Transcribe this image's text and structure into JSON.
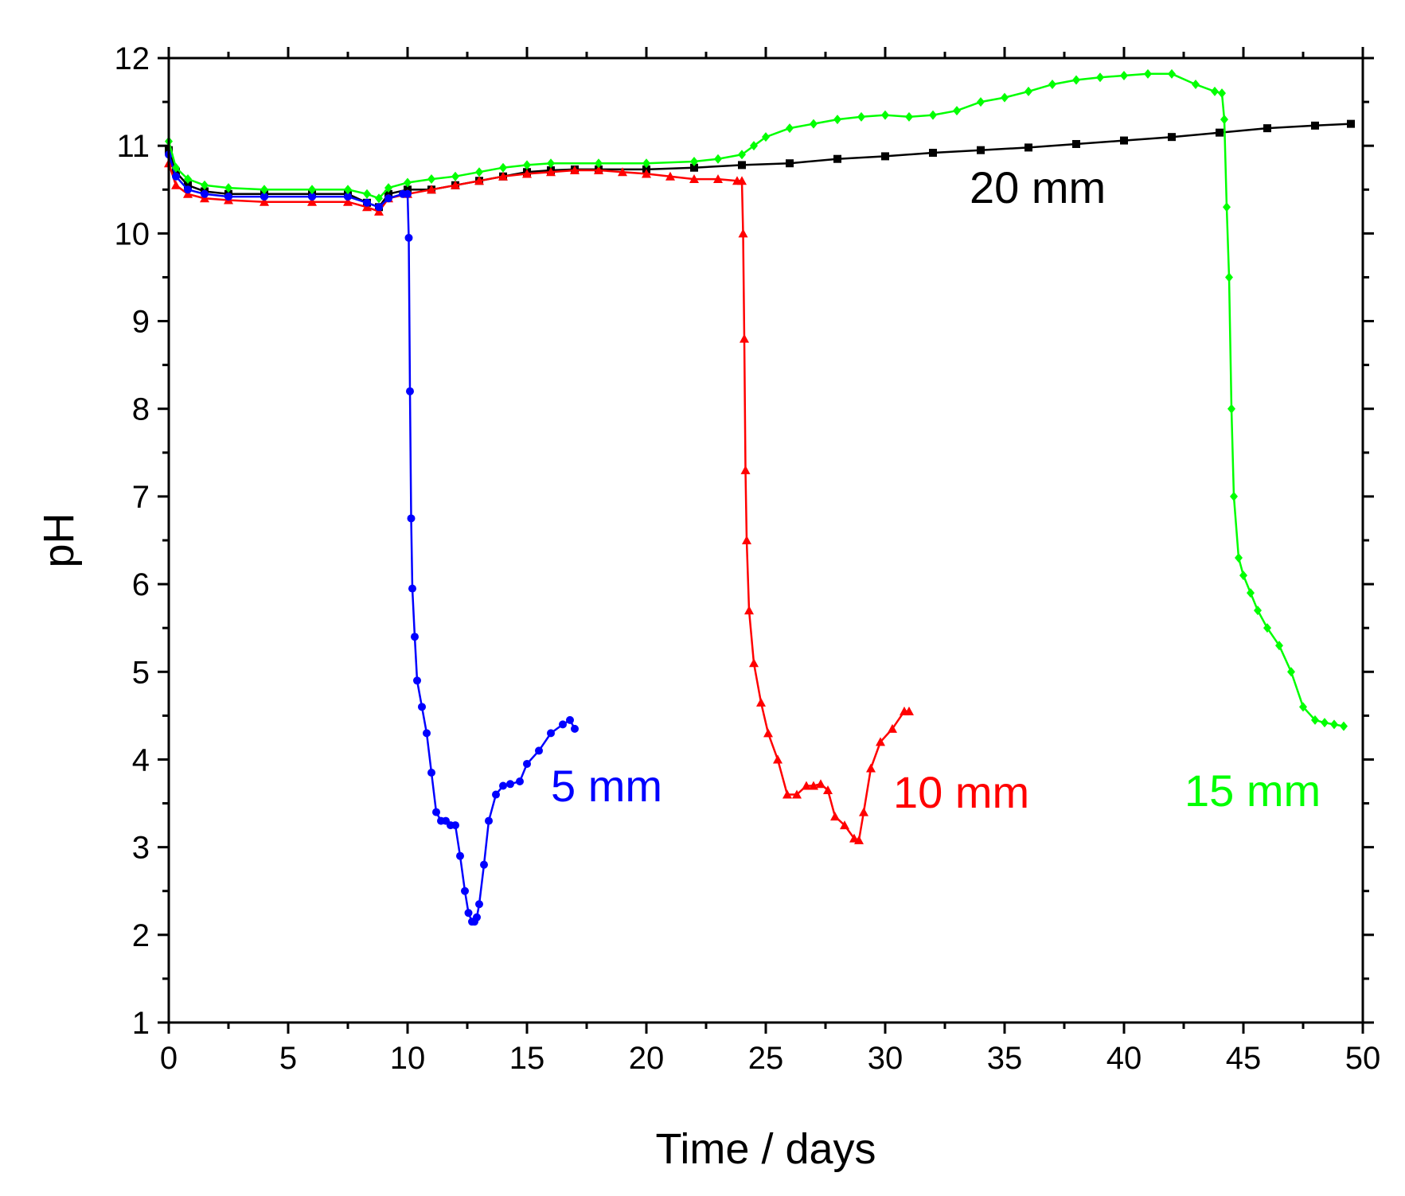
{
  "chart_data": {
    "type": "line",
    "title": "",
    "xlabel": "Time / days",
    "ylabel": "pH",
    "xlim": [
      0,
      50
    ],
    "ylim": [
      1,
      12
    ],
    "x_ticks": [
      "0",
      "5",
      "10",
      "15",
      "20",
      "25",
      "30",
      "35",
      "40",
      "45",
      "50"
    ],
    "y_ticks": [
      "1",
      "2",
      "3",
      "4",
      "5",
      "6",
      "7",
      "8",
      "9",
      "10",
      "11",
      "12"
    ],
    "grid": false,
    "series": [
      {
        "name": "20 mm",
        "label": "20 mm",
        "color": "#000000",
        "marker": "square",
        "x": [
          0,
          0.3,
          0.8,
          1.5,
          2.5,
          4,
          6,
          7.5,
          8.3,
          8.8,
          9.2,
          10,
          11,
          12,
          13,
          14,
          15,
          16,
          17,
          18,
          20,
          22,
          24,
          26,
          28,
          30,
          32,
          34,
          36,
          38,
          40,
          42,
          44,
          46,
          48,
          49.5
        ],
        "y": [
          10.95,
          10.7,
          10.55,
          10.48,
          10.45,
          10.45,
          10.45,
          10.45,
          10.35,
          10.3,
          10.45,
          10.5,
          10.5,
          10.55,
          10.6,
          10.65,
          10.7,
          10.72,
          10.73,
          10.73,
          10.73,
          10.75,
          10.78,
          10.8,
          10.85,
          10.88,
          10.92,
          10.95,
          10.98,
          11.02,
          11.06,
          11.1,
          11.15,
          11.2,
          11.23,
          11.25
        ]
      },
      {
        "name": "5 mm",
        "label": "5 mm",
        "color": "#0000ff",
        "marker": "circle",
        "x": [
          0,
          0.3,
          0.8,
          1.5,
          2.5,
          4,
          6,
          7.5,
          8.3,
          8.8,
          9.2,
          9.8,
          10.0,
          10.05,
          10.1,
          10.15,
          10.2,
          10.3,
          10.4,
          10.6,
          10.8,
          11.0,
          11.2,
          11.4,
          11.6,
          11.8,
          12.0,
          12.2,
          12.4,
          12.55,
          12.7,
          12.8,
          12.9,
          13.0,
          13.2,
          13.4,
          13.7,
          14.0,
          14.3,
          14.7,
          15.0,
          15.5,
          16.0,
          16.5,
          16.8,
          17.0
        ],
        "y": [
          10.9,
          10.65,
          10.5,
          10.45,
          10.42,
          10.42,
          10.42,
          10.42,
          10.35,
          10.3,
          10.4,
          10.45,
          10.45,
          9.95,
          8.2,
          6.75,
          5.95,
          5.4,
          4.9,
          4.6,
          4.3,
          3.85,
          3.4,
          3.3,
          3.3,
          3.25,
          3.25,
          2.9,
          2.5,
          2.25,
          2.15,
          2.15,
          2.2,
          2.35,
          2.8,
          3.3,
          3.6,
          3.7,
          3.72,
          3.75,
          3.95,
          4.1,
          4.3,
          4.4,
          4.45,
          4.35
        ]
      },
      {
        "name": "10 mm",
        "label": "10 mm",
        "color": "#ff0000",
        "marker": "triangle",
        "x": [
          0,
          0.3,
          0.8,
          1.5,
          2.5,
          4,
          6,
          7.5,
          8.3,
          8.8,
          9.2,
          10,
          11,
          12,
          13,
          14,
          15,
          16,
          17,
          18,
          19,
          20,
          21,
          22,
          23,
          23.8,
          24.0,
          24.05,
          24.1,
          24.15,
          24.2,
          24.3,
          24.5,
          24.8,
          25.1,
          25.5,
          25.9,
          26.3,
          26.7,
          27.0,
          27.3,
          27.6,
          27.9,
          28.3,
          28.7,
          28.9,
          29.1,
          29.4,
          29.8,
          30.3,
          30.8,
          31.0
        ],
        "y": [
          10.8,
          10.55,
          10.45,
          10.4,
          10.38,
          10.36,
          10.36,
          10.36,
          10.3,
          10.25,
          10.4,
          10.45,
          10.5,
          10.55,
          10.6,
          10.65,
          10.68,
          10.7,
          10.72,
          10.72,
          10.7,
          10.68,
          10.65,
          10.62,
          10.62,
          10.6,
          10.6,
          10.0,
          8.8,
          7.3,
          6.5,
          5.7,
          5.1,
          4.65,
          4.3,
          4.0,
          3.6,
          3.6,
          3.7,
          3.7,
          3.72,
          3.65,
          3.35,
          3.25,
          3.1,
          3.08,
          3.4,
          3.9,
          4.2,
          4.35,
          4.55,
          4.55
        ]
      },
      {
        "name": "15 mm",
        "label": "15 mm",
        "color": "#00ff00",
        "marker": "diamond",
        "x": [
          0,
          0.3,
          0.8,
          1.5,
          2.5,
          4,
          6,
          7.5,
          8.3,
          8.8,
          9.2,
          10,
          11,
          12,
          13,
          14,
          15,
          16,
          18,
          20,
          22,
          23,
          24,
          24.5,
          25,
          26,
          27,
          28,
          29,
          30,
          31,
          32,
          33,
          34,
          35,
          36,
          37,
          38,
          39,
          40,
          41,
          42,
          43,
          43.8,
          44.1,
          44.2,
          44.3,
          44.4,
          44.5,
          44.6,
          44.8,
          45.0,
          45.3,
          45.6,
          46.0,
          46.5,
          47.0,
          47.5,
          48.0,
          48.4,
          48.8,
          49.2
        ],
        "y": [
          11.05,
          10.75,
          10.62,
          10.55,
          10.52,
          10.5,
          10.5,
          10.5,
          10.45,
          10.4,
          10.52,
          10.58,
          10.62,
          10.65,
          10.7,
          10.75,
          10.78,
          10.8,
          10.8,
          10.8,
          10.82,
          10.85,
          10.9,
          11.0,
          11.1,
          11.2,
          11.25,
          11.3,
          11.33,
          11.35,
          11.33,
          11.35,
          11.4,
          11.5,
          11.55,
          11.62,
          11.7,
          11.75,
          11.78,
          11.8,
          11.82,
          11.82,
          11.7,
          11.62,
          11.6,
          11.3,
          10.3,
          9.5,
          8.0,
          7.0,
          6.3,
          6.1,
          5.9,
          5.7,
          5.5,
          5.3,
          5.0,
          4.6,
          4.45,
          4.42,
          4.4,
          4.38
        ]
      }
    ],
    "annotations": [
      "20 mm",
      "5 mm",
      "10 mm",
      "15 mm"
    ]
  }
}
